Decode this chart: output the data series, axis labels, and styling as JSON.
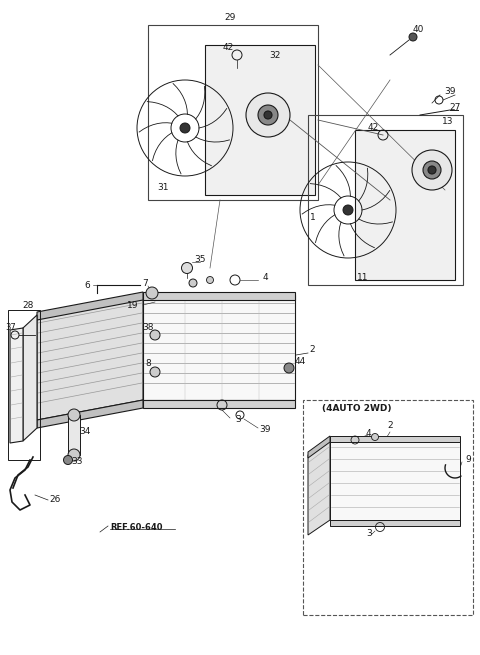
{
  "bg_color": "#ffffff",
  "fig_width": 4.8,
  "fig_height": 6.55,
  "dpi": 100,
  "lc": "#1a1a1a",
  "gc": "#666666",
  "lgc": "#aaaaaa"
}
